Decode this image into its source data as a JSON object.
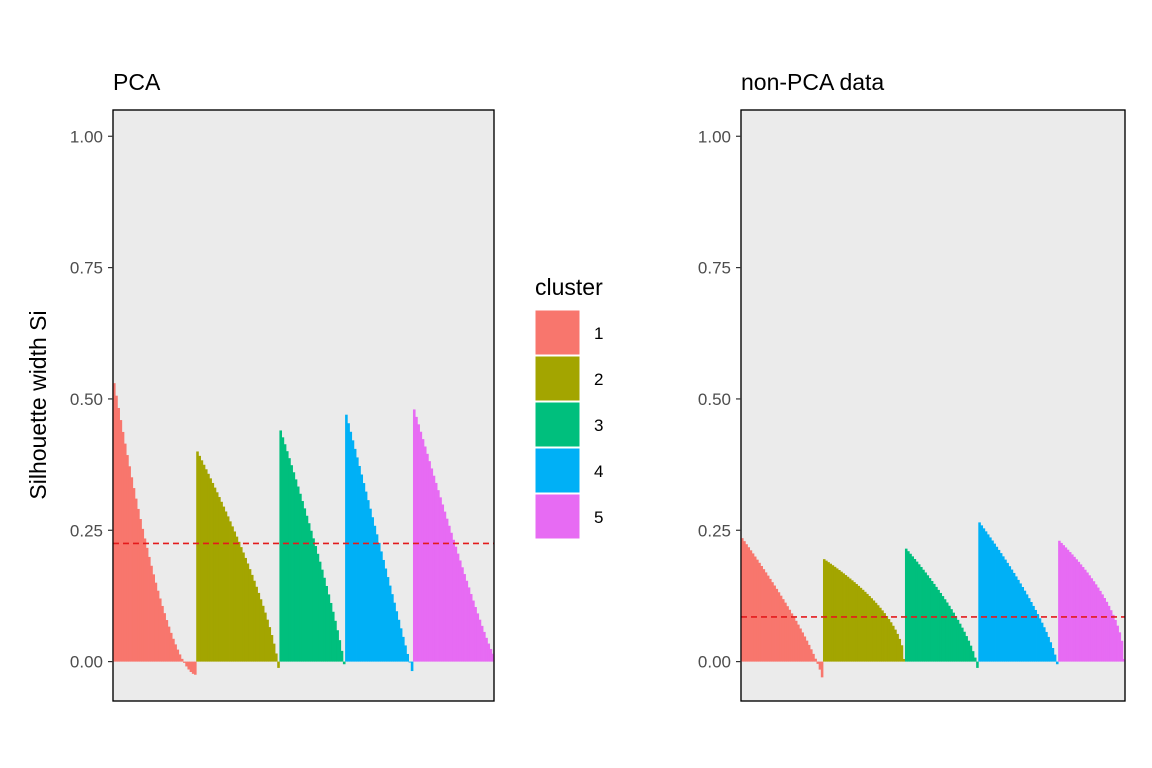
{
  "chart_data": [
    {
      "type": "bar",
      "title": "PCA",
      "ylabel": "Silhouette width Si",
      "xlabel": "",
      "ylim": [
        -0.075,
        1.05
      ],
      "yticks": [
        "0.00",
        "0.25",
        "0.50",
        "0.75",
        "1.00"
      ],
      "grid": false,
      "average_line": {
        "value": 0.225,
        "color": "#e41a1c",
        "style": "dashed"
      },
      "series": [
        {
          "name": "1",
          "n": 38,
          "max": 0.53,
          "min": -0.025,
          "shape": 1.6
        },
        {
          "name": "2",
          "n": 38,
          "max": 0.4,
          "min": -0.012,
          "shape": 0.75
        },
        {
          "name": "3",
          "n": 30,
          "max": 0.44,
          "min": -0.005,
          "shape": 0.85
        },
        {
          "name": "4",
          "n": 31,
          "max": 0.47,
          "min": -0.018,
          "shape": 1.0
        },
        {
          "name": "5",
          "n": 37,
          "max": 0.48,
          "min": 0.015,
          "shape": 1.1
        }
      ]
    },
    {
      "type": "bar",
      "title": "non-PCA data",
      "ylabel": "",
      "xlabel": "",
      "ylim": [
        -0.075,
        1.05
      ],
      "yticks": [
        "0.00",
        "0.25",
        "0.50",
        "0.75",
        "1.00"
      ],
      "grid": false,
      "average_line": {
        "value": 0.085,
        "color": "#e41a1c",
        "style": "dashed"
      },
      "series": [
        {
          "name": "1",
          "n": 38,
          "max": 0.235,
          "min": -0.03,
          "shape": 0.8
        },
        {
          "name": "2",
          "n": 38,
          "max": 0.195,
          "min": 0.005,
          "shape": 0.55
        },
        {
          "name": "3",
          "n": 34,
          "max": 0.215,
          "min": -0.012,
          "shape": 0.7
        },
        {
          "name": "4",
          "n": 37,
          "max": 0.265,
          "min": -0.005,
          "shape": 0.75
        },
        {
          "name": "5",
          "n": 31,
          "max": 0.23,
          "min": 0.005,
          "shape": 0.55
        }
      ]
    }
  ],
  "legend": {
    "title": "cluster",
    "placement": "center-right of first panel",
    "items": [
      {
        "label": "1",
        "color": "#F8766D"
      },
      {
        "label": "2",
        "color": "#A3A500"
      },
      {
        "label": "3",
        "color": "#00BF7D"
      },
      {
        "label": "4",
        "color": "#00B0F6"
      },
      {
        "label": "5",
        "color": "#E76BF3"
      }
    ]
  },
  "colors": {
    "panel_background": "#EBEBEB",
    "average_line": "#e41a1c",
    "series": [
      "#F8766D",
      "#A3A500",
      "#00BF7D",
      "#00B0F6",
      "#E76BF3"
    ]
  }
}
